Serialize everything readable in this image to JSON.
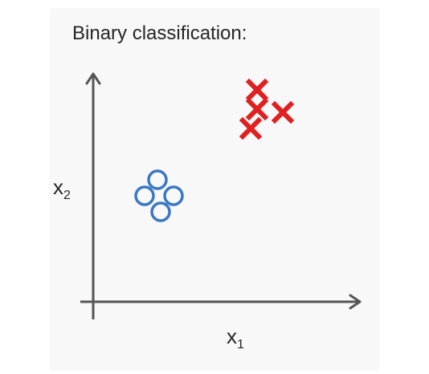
{
  "title": "Binary classification:",
  "axes": {
    "x": {
      "letter": "x",
      "subscript": "1"
    },
    "y": {
      "letter": "x",
      "subscript": "2"
    }
  },
  "colors": {
    "axis": "#555555",
    "circle": "#3b78c2",
    "cross": "#e02020"
  },
  "classes": {
    "circle": {
      "marker": "circle-icon",
      "points": [
        [
          2.0,
          3.8
        ],
        [
          1.6,
          3.3
        ],
        [
          2.5,
          3.3
        ],
        [
          2.1,
          2.8
        ]
      ]
    },
    "cross": {
      "marker": "cross-icon",
      "points": [
        [
          5.1,
          6.6
        ],
        [
          5.1,
          6.0
        ],
        [
          5.9,
          5.9
        ],
        [
          4.9,
          5.4
        ]
      ]
    }
  }
}
